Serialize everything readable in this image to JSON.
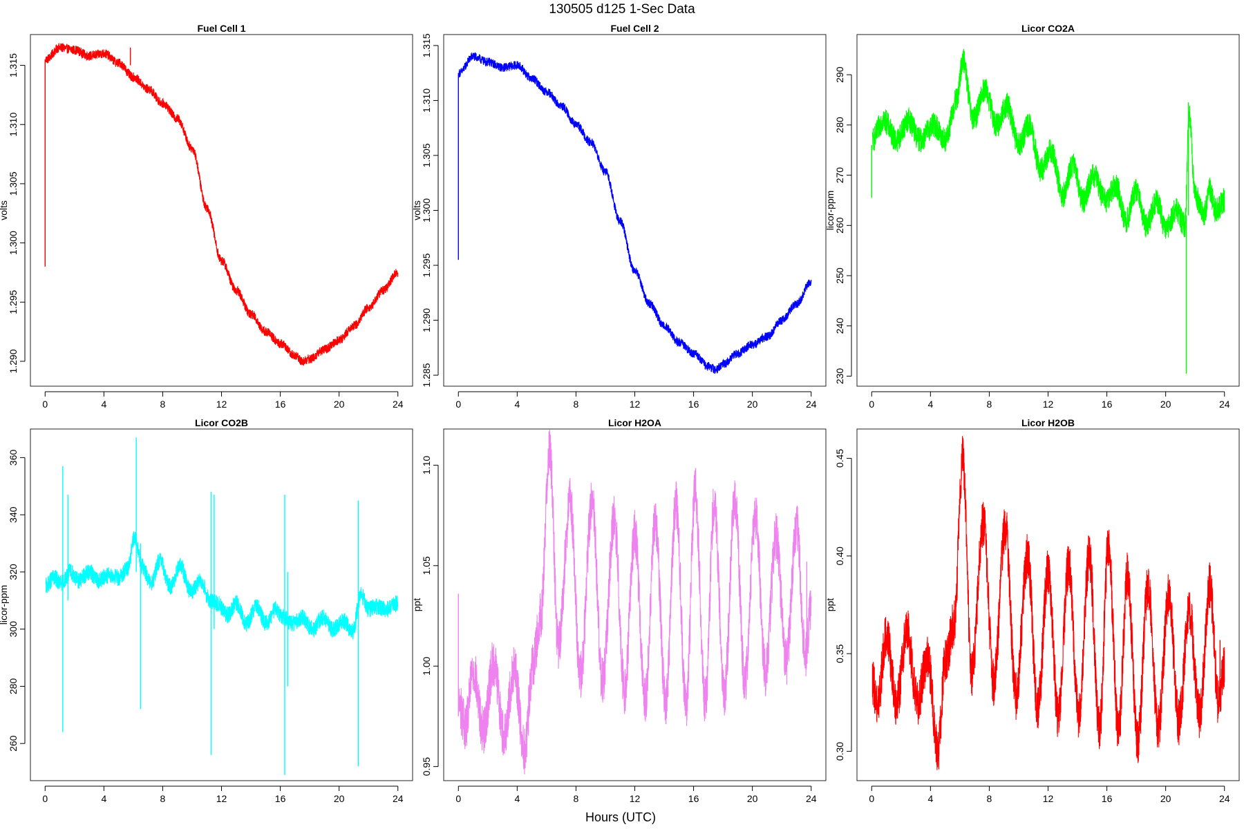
{
  "figure": {
    "title": "130505   d125   1-Sec Data",
    "xlabel": "Hours (UTC)"
  },
  "chart_data": [
    {
      "type": "line",
      "title": "Fuel Cell 1",
      "ylabel": "volts",
      "color": "#ff0000",
      "xlim": [
        -1,
        25
      ],
      "ylim": [
        1.2879,
        1.3176
      ],
      "xticks": [
        0,
        4,
        8,
        12,
        16,
        20,
        24
      ],
      "yticks": [
        1.29,
        1.295,
        1.3,
        1.305,
        1.31,
        1.315
      ],
      "ytick_labels": [
        "1.290",
        "1.295",
        "1.300",
        "1.305",
        "1.310",
        "1.315"
      ],
      "noise": 0.0004,
      "spikes": [
        {
          "x": 0.0,
          "low": 1.298,
          "high": 1.3155
        },
        {
          "x": 5.8,
          "low": 1.315,
          "high": 1.3165
        }
      ],
      "x": [
        0.05,
        1,
        2,
        3,
        4,
        5,
        6,
        7,
        8,
        9,
        10,
        11,
        12,
        13,
        14,
        15,
        16,
        17,
        17.5,
        18,
        19,
        20,
        21,
        22,
        23,
        24
      ],
      "y": [
        1.3155,
        1.3165,
        1.3163,
        1.3158,
        1.316,
        1.3152,
        1.314,
        1.313,
        1.3118,
        1.3105,
        1.308,
        1.303,
        1.2985,
        1.296,
        1.294,
        1.2925,
        1.2915,
        1.2905,
        1.29,
        1.2902,
        1.291,
        1.2918,
        1.293,
        1.2945,
        1.296,
        1.2975
      ]
    },
    {
      "type": "line",
      "title": "Fuel Cell 2",
      "ylabel": "volts",
      "color": "#0000ff",
      "xlim": [
        -1,
        25
      ],
      "ylim": [
        1.284,
        1.316
      ],
      "xticks": [
        0,
        4,
        8,
        12,
        16,
        20,
        24
      ],
      "yticks": [
        1.285,
        1.29,
        1.295,
        1.3,
        1.305,
        1.31,
        1.315
      ],
      "ytick_labels": [
        "1.285",
        "1.290",
        "1.295",
        "1.300",
        "1.305",
        "1.310",
        "1.315"
      ],
      "noise": 0.0004,
      "spikes": [
        {
          "x": 0.0,
          "low": 1.2955,
          "high": 1.3125
        }
      ],
      "x": [
        0.05,
        1,
        2,
        3,
        4,
        5,
        6,
        7,
        8,
        9,
        10,
        11,
        12,
        13,
        14,
        15,
        16,
        17,
        17.5,
        18,
        19,
        20,
        21,
        22,
        23,
        24
      ],
      "y": [
        1.3125,
        1.314,
        1.3135,
        1.313,
        1.3132,
        1.312,
        1.3108,
        1.3095,
        1.3078,
        1.3062,
        1.3035,
        1.299,
        1.2945,
        1.2915,
        1.2895,
        1.288,
        1.287,
        1.2858,
        1.2855,
        1.286,
        1.287,
        1.2878,
        1.2885,
        1.29,
        1.2915,
        1.2935
      ]
    },
    {
      "type": "line",
      "title": "Licor CO2A",
      "ylabel": "licor-ppm",
      "color": "#00ff00",
      "xlim": [
        -1,
        25
      ],
      "ylim": [
        228,
        298
      ],
      "xticks": [
        0,
        4,
        8,
        12,
        16,
        20,
        24
      ],
      "yticks": [
        230,
        240,
        250,
        260,
        270,
        280,
        290
      ],
      "ytick_labels": [
        "230",
        "240",
        "250",
        "260",
        "270",
        "280",
        "290"
      ],
      "noise": 2.5,
      "spikes": [
        {
          "x": 0.0,
          "low": 265.5,
          "high": 276
        },
        {
          "x": 21.4,
          "low": 230.5,
          "high": 262
        },
        {
          "x": 21.55,
          "low": 262,
          "high": 284.5
        }
      ],
      "x": [
        0.05,
        0.8,
        1.7,
        2.5,
        3.3,
        4.2,
        5.0,
        5.8,
        6.2,
        6.9,
        7.7,
        8.5,
        9.2,
        10.0,
        10.7,
        11.5,
        12.2,
        13.0,
        13.7,
        14.4,
        15.1,
        15.9,
        16.6,
        17.3,
        18.0,
        18.7,
        19.4,
        20.0,
        20.7,
        21.3,
        21.6,
        22.0,
        22.6,
        23.0,
        23.4,
        24.0
      ],
      "y": [
        277,
        281,
        277,
        281,
        277,
        280,
        277,
        285,
        293,
        281,
        287,
        280,
        284,
        276,
        280,
        271,
        275,
        266,
        272,
        265,
        270,
        265,
        268,
        261,
        267,
        260,
        265,
        259,
        263,
        260,
        282,
        266,
        262,
        267,
        263,
        265
      ]
    },
    {
      "type": "line",
      "title": "Licor CO2B",
      "ylabel": "licor-ppm",
      "color": "#00ffff",
      "xlim": [
        -1,
        25
      ],
      "ylim": [
        247,
        370
      ],
      "xticks": [
        0,
        4,
        8,
        12,
        16,
        20,
        24
      ],
      "yticks": [
        260,
        280,
        300,
        320,
        340,
        360
      ],
      "ytick_labels": [
        "260",
        "280",
        "300",
        "320",
        "340",
        "360"
      ],
      "noise": 3.0,
      "spikes": [
        {
          "x": 1.2,
          "low": 264,
          "high": 357
        },
        {
          "x": 1.55,
          "low": 310,
          "high": 347
        },
        {
          "x": 6.2,
          "low": 320,
          "high": 367
        },
        {
          "x": 6.5,
          "low": 272,
          "high": 330
        },
        {
          "x": 11.3,
          "low": 256,
          "high": 348
        },
        {
          "x": 11.5,
          "low": 300,
          "high": 347
        },
        {
          "x": 16.3,
          "low": 249,
          "high": 347
        },
        {
          "x": 16.5,
          "low": 280,
          "high": 320
        },
        {
          "x": 21.3,
          "low": 252,
          "high": 345
        }
      ],
      "x": [
        0.05,
        0.6,
        1.1,
        1.7,
        2.3,
        3.0,
        3.6,
        4.3,
        5.0,
        5.6,
        6.1,
        6.6,
        7.2,
        7.8,
        8.5,
        9.2,
        9.9,
        10.6,
        11.2,
        11.7,
        12.4,
        13.0,
        13.7,
        14.4,
        15.0,
        15.7,
        16.2,
        16.8,
        17.5,
        18.2,
        18.9,
        19.6,
        20.3,
        20.9,
        21.5,
        22.0,
        22.6,
        23.2,
        24.0
      ],
      "y": [
        315,
        318,
        316,
        320,
        317,
        320,
        317,
        319,
        318,
        321,
        332,
        322,
        316,
        324,
        315,
        322,
        313,
        317,
        310,
        309,
        305,
        309,
        302,
        308,
        302,
        307,
        304,
        302,
        304,
        300,
        304,
        300,
        303,
        299,
        312,
        307,
        308,
        307,
        309
      ]
    },
    {
      "type": "line",
      "title": "Licor H2OA",
      "ylabel": "ppt",
      "color": "#ee82ee",
      "xlim": [
        -1,
        25
      ],
      "ylim": [
        0.943,
        1.118
      ],
      "xticks": [
        0,
        4,
        8,
        12,
        16,
        20,
        24
      ],
      "yticks": [
        0.95,
        1.0,
        1.05,
        1.1
      ],
      "ytick_labels": [
        "0.95",
        "1.00",
        "1.05",
        "1.10"
      ],
      "noise": 0.012,
      "spikes": [
        {
          "x": 0.0,
          "low": 0.975,
          "high": 1.036
        },
        {
          "x": 23.7,
          "low": 1.015,
          "high": 1.052
        }
      ],
      "x": [
        0.05,
        0.5,
        1.0,
        1.7,
        2.4,
        3.1,
        3.8,
        4.5,
        5.1,
        5.6,
        6.2,
        6.8,
        7.6,
        8.3,
        9.1,
        9.8,
        10.6,
        11.3,
        12.0,
        12.7,
        13.4,
        14.1,
        14.8,
        15.5,
        16.1,
        16.8,
        17.4,
        18.1,
        18.8,
        19.5,
        20.2,
        20.9,
        21.6,
        22.3,
        23.0,
        23.6,
        24.0
      ],
      "y": [
        0.98,
        0.97,
        0.998,
        0.968,
        1.002,
        0.966,
        0.998,
        0.958,
        1.002,
        1.025,
        1.108,
        1.01,
        1.082,
        0.995,
        1.082,
        0.992,
        1.073,
        0.988,
        1.066,
        0.982,
        1.071,
        0.982,
        1.08,
        0.98,
        1.088,
        0.982,
        1.08,
        0.987,
        1.082,
        0.992,
        1.075,
        0.997,
        1.065,
        1.002,
        1.07,
        1.006,
        1.03
      ]
    },
    {
      "type": "line",
      "title": "Licor H2OB",
      "ylabel": "ppt",
      "color": "#ff0000",
      "xlim": [
        -1,
        25
      ],
      "ylim": [
        0.285,
        0.465
      ],
      "xticks": [
        0,
        4,
        8,
        12,
        16,
        20,
        24
      ],
      "yticks": [
        0.3,
        0.35,
        0.4,
        0.45
      ],
      "ytick_labels": [
        "0.30",
        "0.35",
        "0.40",
        "0.45"
      ],
      "noise": 0.012,
      "spikes": [
        {
          "x": 23.7,
          "low": 0.338,
          "high": 0.357
        }
      ],
      "x": [
        0.05,
        0.4,
        1.0,
        1.7,
        2.4,
        3.1,
        3.8,
        4.5,
        5.0,
        5.6,
        6.2,
        6.8,
        7.6,
        8.3,
        9.1,
        9.8,
        10.6,
        11.3,
        12.0,
        12.7,
        13.4,
        14.1,
        14.8,
        15.5,
        16.1,
        16.8,
        17.4,
        18.1,
        18.8,
        19.5,
        20.2,
        20.9,
        21.6,
        22.3,
        23.0,
        23.6,
        24.0
      ],
      "y": [
        0.335,
        0.325,
        0.36,
        0.325,
        0.362,
        0.325,
        0.348,
        0.3,
        0.345,
        0.365,
        0.45,
        0.34,
        0.417,
        0.335,
        0.415,
        0.328,
        0.4,
        0.322,
        0.392,
        0.318,
        0.395,
        0.318,
        0.4,
        0.312,
        0.405,
        0.31,
        0.39,
        0.305,
        0.385,
        0.312,
        0.38,
        0.315,
        0.373,
        0.318,
        0.385,
        0.325,
        0.345
      ]
    }
  ]
}
